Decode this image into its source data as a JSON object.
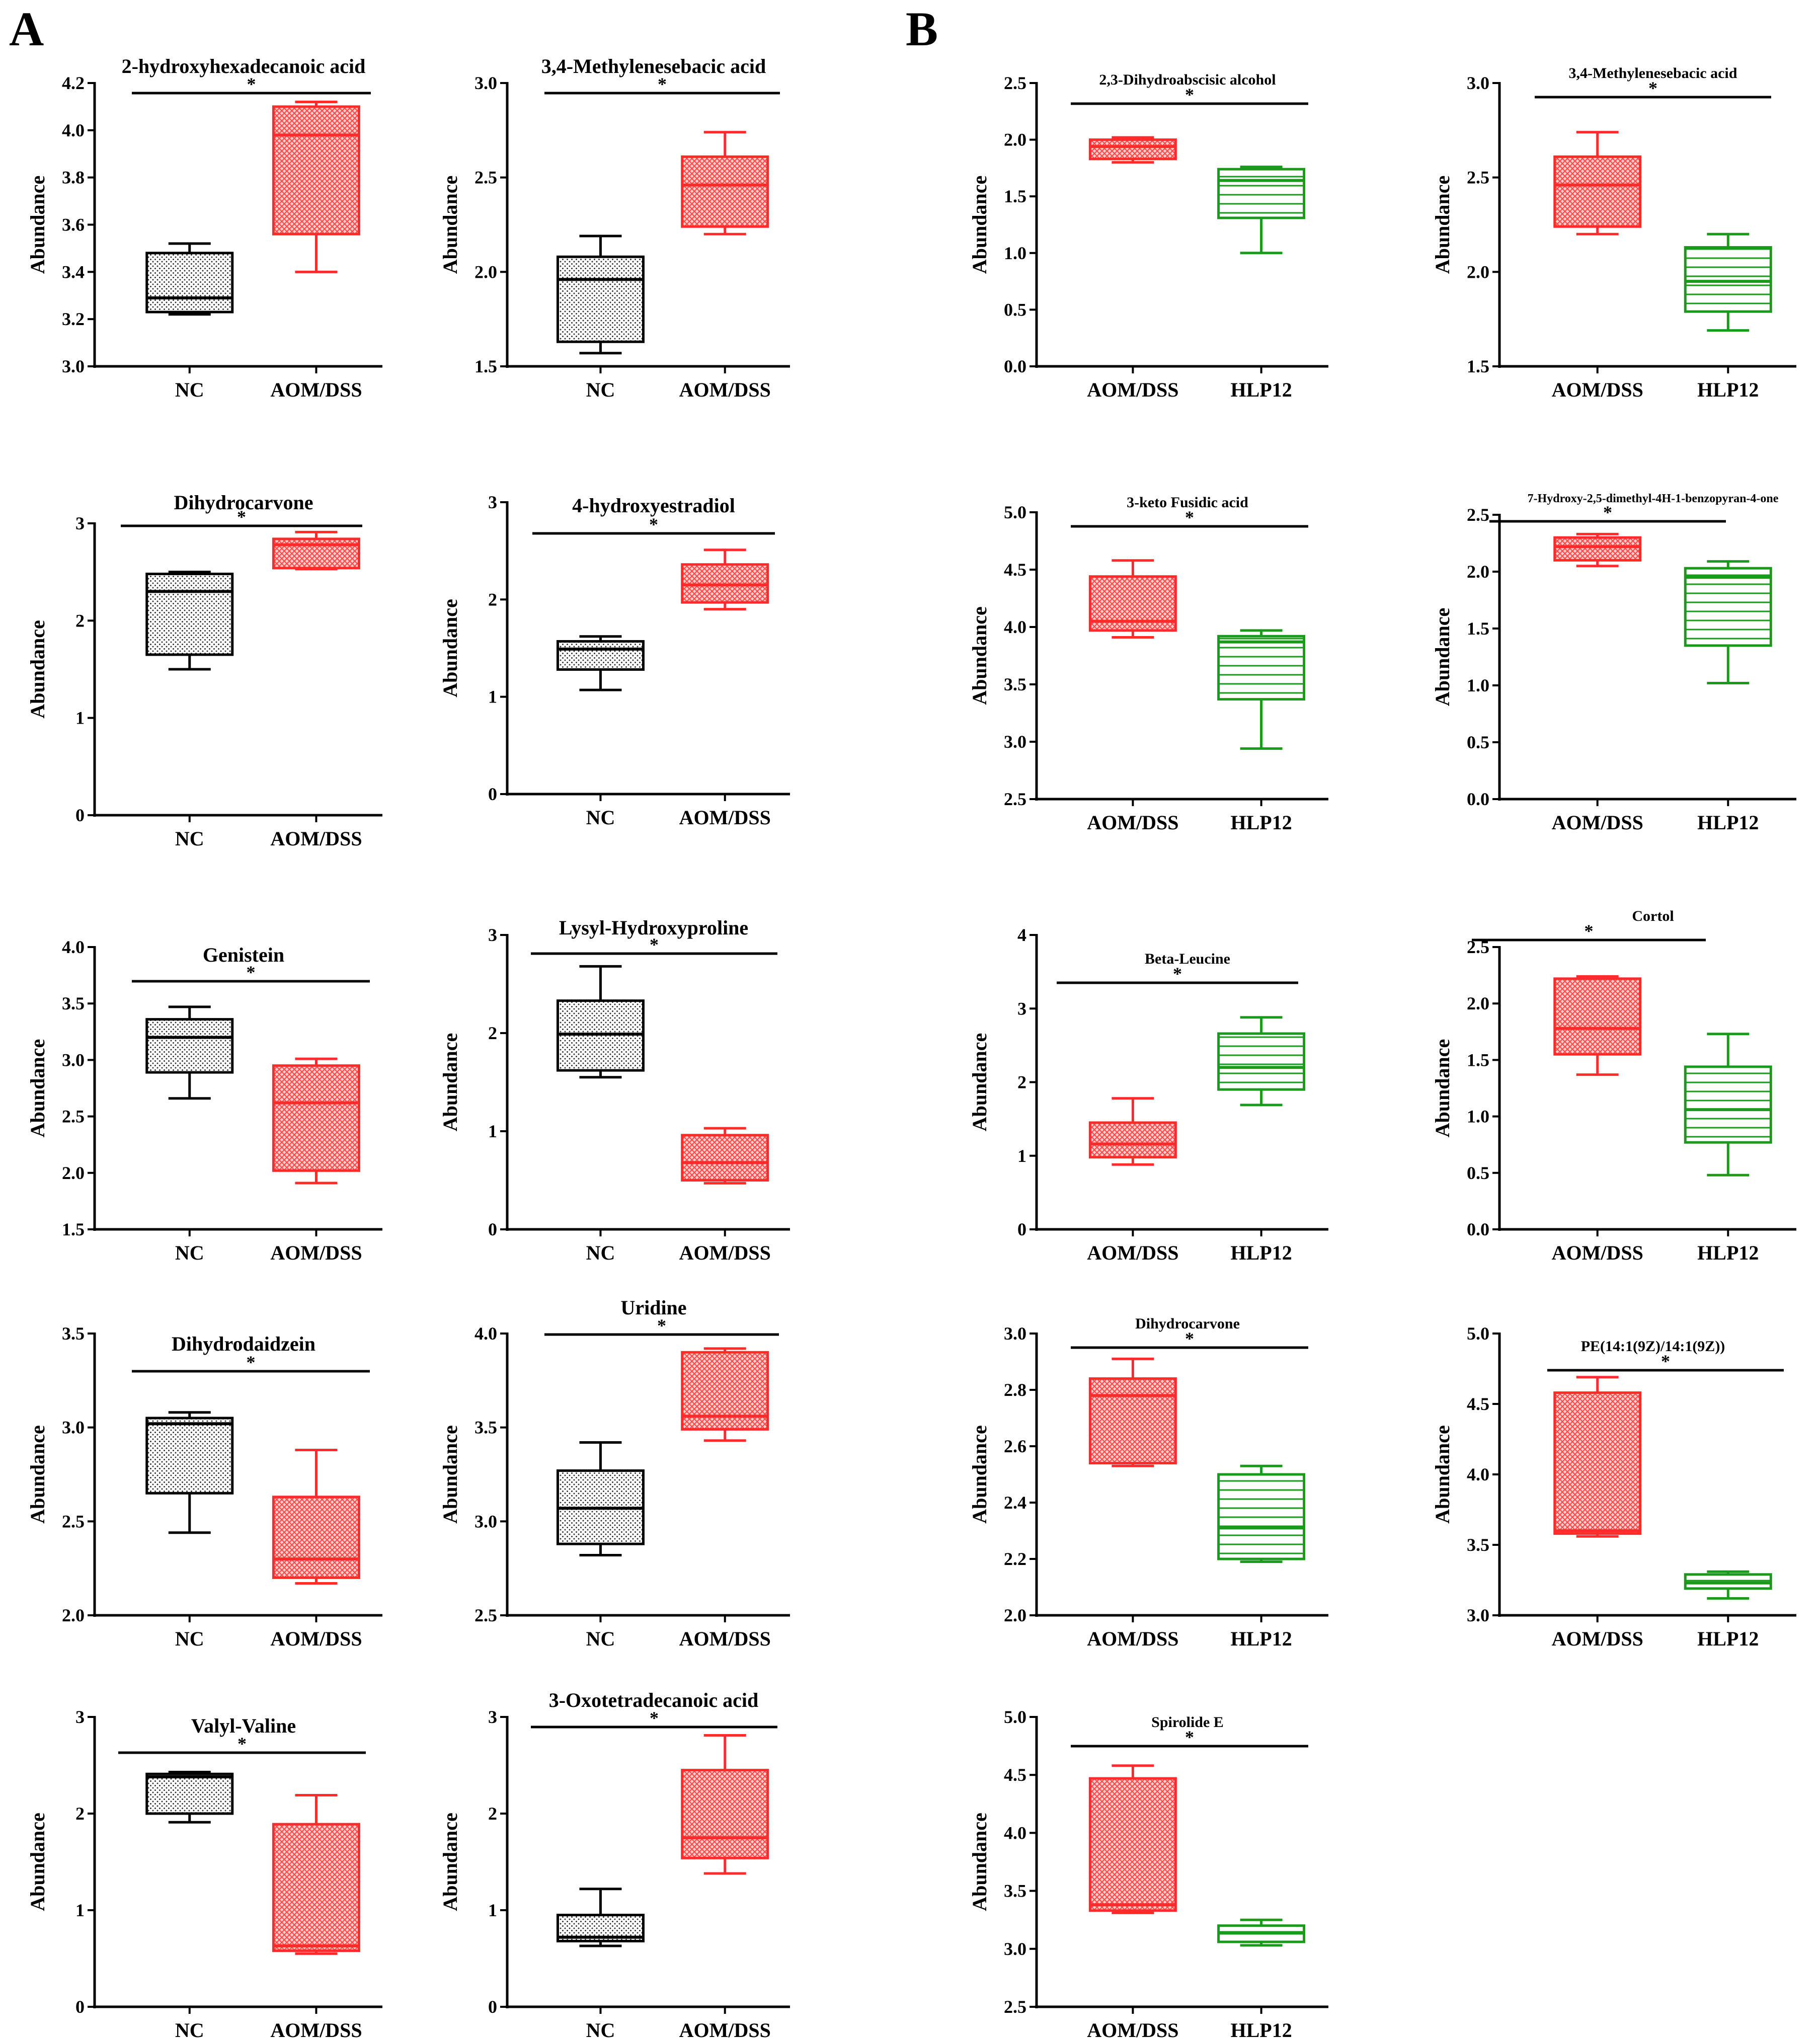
{
  "panels": [
    {
      "id": "panel-a",
      "label": "A"
    },
    {
      "id": "panel-b",
      "label": "B"
    }
  ],
  "colors": {
    "NC": "#000000",
    "AOM/DSS": "#ff2b2b",
    "HLP12": "#1a9a1a"
  },
  "chart_data": [
    {
      "type": "box",
      "panel": "A",
      "title": "2-hydroxyhexadecanoic acid",
      "ylabel": "Abundance",
      "ylim": [
        3.0,
        4.2
      ],
      "yticks": [
        "3.0",
        "3.2",
        "3.4",
        "3.6",
        "3.8",
        "4.0",
        "4.2"
      ],
      "sig": "*",
      "groups": [
        {
          "name": "NC",
          "color": "#000000",
          "pattern": "dots",
          "min": 3.22,
          "q1": 3.23,
          "median": 3.29,
          "q3": 3.48,
          "max": 3.52
        },
        {
          "name": "AOM/DSS",
          "color": "#ff2b2b",
          "pattern": "check",
          "min": 3.4,
          "q1": 3.56,
          "median": 3.98,
          "q3": 4.1,
          "max": 4.12
        }
      ]
    },
    {
      "type": "box",
      "panel": "A",
      "title": "3,4-Methylenesebacic acid",
      "ylabel": "Abundance",
      "ylim": [
        1.5,
        3.0
      ],
      "yticks": [
        "1.5",
        "2.0",
        "2.5",
        "3.0"
      ],
      "sig": "*",
      "groups": [
        {
          "name": "NC",
          "color": "#000000",
          "pattern": "dots",
          "min": 1.57,
          "q1": 1.63,
          "median": 1.96,
          "q3": 2.08,
          "max": 2.19
        },
        {
          "name": "AOM/DSS",
          "color": "#ff2b2b",
          "pattern": "check",
          "min": 2.2,
          "q1": 2.24,
          "median": 2.46,
          "q3": 2.61,
          "max": 2.74
        }
      ]
    },
    {
      "type": "box",
      "panel": "A",
      "title": "Dihydrocarvone",
      "ylabel": "Abundance",
      "ylim": [
        0,
        3
      ],
      "yticks": [
        "0",
        "1",
        "2",
        "3"
      ],
      "sig": "*",
      "groups": [
        {
          "name": "NC",
          "color": "#000000",
          "pattern": "dots",
          "min": 1.5,
          "q1": 1.65,
          "median": 2.3,
          "q3": 2.48,
          "max": 2.5
        },
        {
          "name": "AOM/DSS",
          "color": "#ff2b2b",
          "pattern": "check",
          "min": 2.53,
          "q1": 2.54,
          "median": 2.78,
          "q3": 2.84,
          "max": 2.91
        }
      ]
    },
    {
      "type": "box",
      "panel": "A",
      "title": "4-hydroxyestradiol",
      "ylabel": "Abundance",
      "ylim": [
        0,
        3
      ],
      "yticks": [
        "0",
        "1",
        "2",
        "3"
      ],
      "sig": "*",
      "groups": [
        {
          "name": "NC",
          "color": "#000000",
          "pattern": "dots",
          "min": 1.07,
          "q1": 1.28,
          "median": 1.49,
          "q3": 1.57,
          "max": 1.62
        },
        {
          "name": "AOM/DSS",
          "color": "#ff2b2b",
          "pattern": "check",
          "min": 1.9,
          "q1": 1.97,
          "median": 2.15,
          "q3": 2.36,
          "max": 2.51
        }
      ]
    },
    {
      "type": "box",
      "panel": "A",
      "title": "Genistein",
      "ylabel": "Abundance",
      "ylim": [
        1.5,
        4.0
      ],
      "yticks": [
        "1.5",
        "2.0",
        "2.5",
        "3.0",
        "3.5",
        "4.0"
      ],
      "sig": "*",
      "groups": [
        {
          "name": "NC",
          "color": "#000000",
          "pattern": "dots",
          "min": 2.66,
          "q1": 2.89,
          "median": 3.2,
          "q3": 3.36,
          "max": 3.47
        },
        {
          "name": "AOM/DSS",
          "color": "#ff2b2b",
          "pattern": "check",
          "min": 1.91,
          "q1": 2.02,
          "median": 2.62,
          "q3": 2.95,
          "max": 3.01
        }
      ]
    },
    {
      "type": "box",
      "panel": "A",
      "title": "Lysyl-Hydroxyproline",
      "ylabel": "Abundance",
      "ylim": [
        0,
        3
      ],
      "yticks": [
        "0",
        "1",
        "2",
        "3"
      ],
      "sig": "*",
      "groups": [
        {
          "name": "NC",
          "color": "#000000",
          "pattern": "dots",
          "min": 1.55,
          "q1": 1.62,
          "median": 1.99,
          "q3": 2.33,
          "max": 2.68
        },
        {
          "name": "AOM/DSS",
          "color": "#ff2b2b",
          "pattern": "check",
          "min": 0.47,
          "q1": 0.5,
          "median": 0.68,
          "q3": 0.96,
          "max": 1.03
        }
      ]
    },
    {
      "type": "box",
      "panel": "A",
      "title": "Dihydrodaidzein",
      "ylabel": "Abundance",
      "ylim": [
        2.0,
        3.5
      ],
      "yticks": [
        "2.0",
        "2.5",
        "3.0",
        "3.5"
      ],
      "sig": "*",
      "groups": [
        {
          "name": "NC",
          "color": "#000000",
          "pattern": "dots",
          "min": 2.44,
          "q1": 2.65,
          "median": 3.02,
          "q3": 3.05,
          "max": 3.08
        },
        {
          "name": "AOM/DSS",
          "color": "#ff2b2b",
          "pattern": "check",
          "min": 2.17,
          "q1": 2.2,
          "median": 2.3,
          "q3": 2.63,
          "max": 2.88
        }
      ]
    },
    {
      "type": "box",
      "panel": "A",
      "title": "Uridine",
      "ylabel": "Abundance",
      "ylim": [
        2.5,
        4.0
      ],
      "yticks": [
        "2.5",
        "3.0",
        "3.5",
        "4.0"
      ],
      "sig": "*",
      "groups": [
        {
          "name": "NC",
          "color": "#000000",
          "pattern": "dots",
          "min": 2.82,
          "q1": 2.88,
          "median": 3.07,
          "q3": 3.27,
          "max": 3.42
        },
        {
          "name": "AOM/DSS",
          "color": "#ff2b2b",
          "pattern": "check",
          "min": 3.43,
          "q1": 3.49,
          "median": 3.56,
          "q3": 3.9,
          "max": 3.92
        }
      ]
    },
    {
      "type": "box",
      "panel": "A",
      "title": "Valyl-Valine",
      "ylabel": "Abundance",
      "ylim": [
        0,
        3
      ],
      "yticks": [
        "0",
        "1",
        "2",
        "3"
      ],
      "sig": "*",
      "groups": [
        {
          "name": "NC",
          "color": "#000000",
          "pattern": "dots",
          "min": 1.91,
          "q1": 2.0,
          "median": 2.38,
          "q3": 2.41,
          "max": 2.43
        },
        {
          "name": "AOM/DSS",
          "color": "#ff2b2b",
          "pattern": "check",
          "min": 0.55,
          "q1": 0.58,
          "median": 0.63,
          "q3": 1.89,
          "max": 2.19
        }
      ]
    },
    {
      "type": "box",
      "panel": "A",
      "title": "3-Oxotetradecanoic acid",
      "ylabel": "Abundance",
      "ylim": [
        0,
        3
      ],
      "yticks": [
        "0",
        "1",
        "2",
        "3"
      ],
      "sig": "*",
      "groups": [
        {
          "name": "NC",
          "color": "#000000",
          "pattern": "dots",
          "min": 0.63,
          "q1": 0.68,
          "median": 0.72,
          "q3": 0.95,
          "max": 1.22
        },
        {
          "name": "AOM/DSS",
          "color": "#ff2b2b",
          "pattern": "check",
          "min": 1.38,
          "q1": 1.54,
          "median": 1.75,
          "q3": 2.45,
          "max": 2.81
        }
      ]
    },
    {
      "type": "box",
      "panel": "B",
      "title": "2,3-Dihydroabscisic alcohol",
      "ylabel": "Abundance",
      "ylim": [
        0.0,
        2.5
      ],
      "yticks": [
        "0.0",
        "0.5",
        "1.0",
        "1.5",
        "2.0",
        "2.5"
      ],
      "sig": "*",
      "groups": [
        {
          "name": "AOM/DSS",
          "color": "#ff2b2b",
          "pattern": "check",
          "min": 1.8,
          "q1": 1.83,
          "median": 1.94,
          "q3": 2.0,
          "max": 2.02
        },
        {
          "name": "HLP12",
          "color": "#1a9a1a",
          "pattern": "hlines",
          "min": 1.0,
          "q1": 1.31,
          "median": 1.64,
          "q3": 1.74,
          "max": 1.76
        }
      ]
    },
    {
      "type": "box",
      "panel": "B",
      "title": "3,4-Methylenesebacic acid",
      "ylabel": "Abundance",
      "ylim": [
        1.5,
        3.0
      ],
      "yticks": [
        "1.5",
        "2.0",
        "2.5",
        "3.0"
      ],
      "sig": "*",
      "groups": [
        {
          "name": "AOM/DSS",
          "color": "#ff2b2b",
          "pattern": "check",
          "min": 2.2,
          "q1": 2.24,
          "median": 2.46,
          "q3": 2.61,
          "max": 2.74
        },
        {
          "name": "HLP12",
          "color": "#1a9a1a",
          "pattern": "hlines",
          "min": 1.69,
          "q1": 1.79,
          "median": 1.95,
          "q3": 2.13,
          "max": 2.2
        }
      ]
    },
    {
      "type": "box",
      "panel": "B",
      "title": "3-keto Fusidic acid",
      "ylabel": "Abundance",
      "ylim": [
        2.5,
        5.0
      ],
      "yticks": [
        "2.5",
        "3.0",
        "3.5",
        "4.0",
        "4.5",
        "5.0"
      ],
      "sig": "*",
      "groups": [
        {
          "name": "AOM/DSS",
          "color": "#ff2b2b",
          "pattern": "check",
          "min": 3.91,
          "q1": 3.97,
          "median": 4.05,
          "q3": 4.44,
          "max": 4.58
        },
        {
          "name": "HLP12",
          "color": "#1a9a1a",
          "pattern": "hlines",
          "min": 2.94,
          "q1": 3.37,
          "median": 3.87,
          "q3": 3.92,
          "max": 3.97
        }
      ]
    },
    {
      "type": "box",
      "panel": "B",
      "title": "7-Hydroxy-2,5-dimethyl-4H-1-benzopyran-4-one",
      "ylabel": "Abundance",
      "ylim": [
        0.0,
        2.5
      ],
      "yticks": [
        "0.0",
        "0.5",
        "1.0",
        "1.5",
        "2.0",
        "2.5"
      ],
      "sig": "*",
      "groups": [
        {
          "name": "AOM/DSS",
          "color": "#ff2b2b",
          "pattern": "check",
          "min": 2.05,
          "q1": 2.1,
          "median": 2.22,
          "q3": 2.3,
          "max": 2.33
        },
        {
          "name": "HLP12",
          "color": "#1a9a1a",
          "pattern": "hlines",
          "min": 1.02,
          "q1": 1.35,
          "median": 1.95,
          "q3": 2.03,
          "max": 2.09
        }
      ]
    },
    {
      "type": "box",
      "panel": "B",
      "title": "Beta-Leucine",
      "ylabel": "Abundance",
      "ylim": [
        0,
        4
      ],
      "yticks": [
        "0",
        "1",
        "2",
        "3",
        "4"
      ],
      "sig": "*",
      "groups": [
        {
          "name": "AOM/DSS",
          "color": "#ff2b2b",
          "pattern": "check",
          "min": 0.88,
          "q1": 0.98,
          "median": 1.16,
          "q3": 1.45,
          "max": 1.78
        },
        {
          "name": "HLP12",
          "color": "#1a9a1a",
          "pattern": "hlines",
          "min": 1.69,
          "q1": 1.9,
          "median": 2.2,
          "q3": 2.66,
          "max": 2.88
        }
      ]
    },
    {
      "type": "box",
      "panel": "B",
      "title": "Cortol",
      "ylabel": "Abundance",
      "ylim": [
        0.0,
        2.5
      ],
      "yticks": [
        "0.0",
        "0.5",
        "1.0",
        "1.5",
        "2.0",
        "2.5"
      ],
      "sig": "*",
      "groups": [
        {
          "name": "AOM/DSS",
          "color": "#ff2b2b",
          "pattern": "check",
          "min": 1.37,
          "q1": 1.55,
          "median": 1.78,
          "q3": 2.22,
          "max": 2.24
        },
        {
          "name": "HLP12",
          "color": "#1a9a1a",
          "pattern": "hlines",
          "min": 0.48,
          "q1": 0.77,
          "median": 1.06,
          "q3": 1.44,
          "max": 1.73
        }
      ]
    },
    {
      "type": "box",
      "panel": "B",
      "title": "Dihydrocarvone",
      "ylabel": "Abundance",
      "ylim": [
        2.0,
        3.0
      ],
      "yticks": [
        "2.0",
        "2.2",
        "2.4",
        "2.6",
        "2.8",
        "3.0"
      ],
      "sig": "*",
      "groups": [
        {
          "name": "AOM/DSS",
          "color": "#ff2b2b",
          "pattern": "check",
          "min": 2.53,
          "q1": 2.54,
          "median": 2.78,
          "q3": 2.84,
          "max": 2.91
        },
        {
          "name": "HLP12",
          "color": "#1a9a1a",
          "pattern": "hlines",
          "min": 2.19,
          "q1": 2.2,
          "median": 2.31,
          "q3": 2.5,
          "max": 2.53
        }
      ]
    },
    {
      "type": "box",
      "panel": "B",
      "title": "PE(14:1(9Z)/14:1(9Z))",
      "ylabel": "Abundance",
      "ylim": [
        3.0,
        5.0
      ],
      "yticks": [
        "3.0",
        "3.5",
        "4.0",
        "4.5",
        "5.0"
      ],
      "sig": "*",
      "groups": [
        {
          "name": "AOM/DSS",
          "color": "#ff2b2b",
          "pattern": "check",
          "min": 3.56,
          "q1": 3.58,
          "median": 3.6,
          "q3": 4.58,
          "max": 4.69
        },
        {
          "name": "HLP12",
          "color": "#1a9a1a",
          "pattern": "hlines",
          "min": 3.12,
          "q1": 3.19,
          "median": 3.23,
          "q3": 3.29,
          "max": 3.31
        }
      ]
    },
    {
      "type": "box",
      "panel": "B",
      "title": "Spirolide E",
      "ylabel": "Abundance",
      "ylim": [
        2.5,
        5.0
      ],
      "yticks": [
        "2.5",
        "3.0",
        "3.5",
        "4.0",
        "4.5",
        "5.0"
      ],
      "sig": "*",
      "groups": [
        {
          "name": "AOM/DSS",
          "color": "#ff2b2b",
          "pattern": "check",
          "min": 3.31,
          "q1": 3.33,
          "median": 3.38,
          "q3": 4.47,
          "max": 4.58
        },
        {
          "name": "HLP12",
          "color": "#1a9a1a",
          "pattern": "hlines",
          "min": 3.03,
          "q1": 3.06,
          "median": 3.14,
          "q3": 3.2,
          "max": 3.25
        }
      ]
    }
  ]
}
